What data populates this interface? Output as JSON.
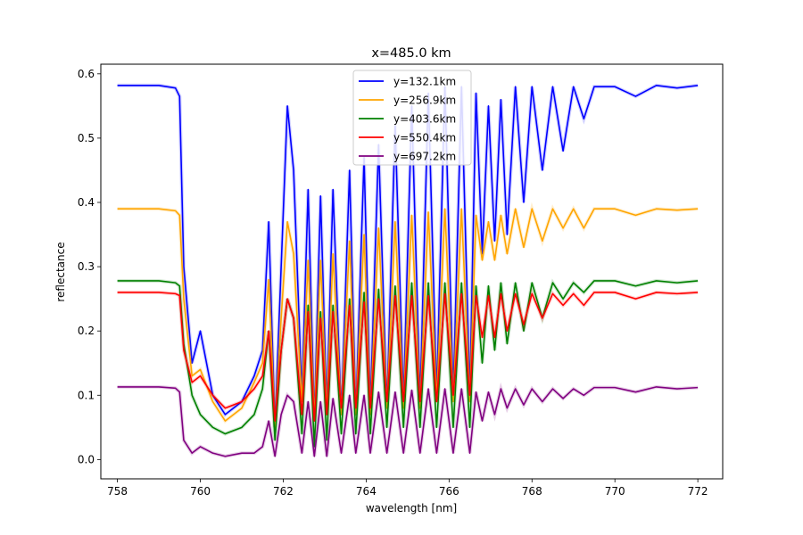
{
  "chart_data": {
    "type": "line",
    "title": "x=485.0 km",
    "xlabel": "wavelength [nm]",
    "ylabel": "reflectance",
    "xlim": [
      757.6,
      772.6
    ],
    "ylim": [
      -0.03,
      0.615
    ],
    "xticks": [
      758,
      760,
      762,
      764,
      766,
      768,
      770,
      772
    ],
    "yticks": [
      0.0,
      0.1,
      0.2,
      0.3,
      0.4,
      0.5,
      0.6
    ],
    "xtick_labels": [
      "758",
      "760",
      "762",
      "764",
      "766",
      "768",
      "770",
      "772"
    ],
    "ytick_labels": [
      "0.0",
      "0.1",
      "0.2",
      "0.3",
      "0.4",
      "0.5",
      "0.6"
    ],
    "grid": false,
    "legend_position": "top-center",
    "series": [
      {
        "name": "y=132.1km",
        "color": "#0000ff",
        "x": [
          758.0,
          759.0,
          759.4,
          759.5,
          759.6,
          759.8,
          760.0,
          760.3,
          760.6,
          761.0,
          761.3,
          761.5,
          761.65,
          761.8,
          761.95,
          762.1,
          762.25,
          762.45,
          762.6,
          762.75,
          762.9,
          763.05,
          763.2,
          763.4,
          763.6,
          763.75,
          763.95,
          764.1,
          764.3,
          764.5,
          764.7,
          764.9,
          765.1,
          765.3,
          765.5,
          765.7,
          765.9,
          766.1,
          766.3,
          766.5,
          766.65,
          766.8,
          766.95,
          767.1,
          767.25,
          767.4,
          767.6,
          767.8,
          768.0,
          768.25,
          768.5,
          768.75,
          769.0,
          769.25,
          769.5,
          770.0,
          770.5,
          771.0,
          771.5,
          772.0
        ],
        "y": [
          0.582,
          0.582,
          0.578,
          0.565,
          0.3,
          0.15,
          0.2,
          0.1,
          0.07,
          0.09,
          0.13,
          0.17,
          0.37,
          0.05,
          0.3,
          0.55,
          0.45,
          0.1,
          0.42,
          0.06,
          0.41,
          0.08,
          0.42,
          0.07,
          0.45,
          0.07,
          0.47,
          0.08,
          0.49,
          0.08,
          0.52,
          0.09,
          0.55,
          0.09,
          0.57,
          0.1,
          0.58,
          0.1,
          0.58,
          0.1,
          0.57,
          0.32,
          0.55,
          0.34,
          0.56,
          0.35,
          0.58,
          0.4,
          0.58,
          0.45,
          0.58,
          0.48,
          0.58,
          0.53,
          0.58,
          0.58,
          0.565,
          0.582,
          0.578,
          0.582
        ]
      },
      {
        "name": "y=256.9km",
        "color": "#ffa500",
        "x": [
          758.0,
          759.0,
          759.4,
          759.5,
          759.6,
          759.8,
          760.0,
          760.3,
          760.6,
          761.0,
          761.3,
          761.5,
          761.65,
          761.8,
          761.95,
          762.1,
          762.25,
          762.45,
          762.6,
          762.75,
          762.9,
          763.05,
          763.2,
          763.4,
          763.6,
          763.75,
          763.95,
          764.1,
          764.3,
          764.5,
          764.7,
          764.9,
          765.1,
          765.3,
          765.5,
          765.7,
          765.9,
          766.1,
          766.3,
          766.5,
          766.65,
          766.8,
          766.95,
          767.1,
          767.25,
          767.4,
          767.6,
          767.8,
          768.0,
          768.25,
          768.5,
          768.75,
          769.0,
          769.25,
          769.5,
          770.0,
          770.5,
          771.0,
          771.5,
          772.0
        ],
        "y": [
          0.39,
          0.39,
          0.387,
          0.38,
          0.25,
          0.13,
          0.14,
          0.09,
          0.06,
          0.08,
          0.12,
          0.15,
          0.28,
          0.05,
          0.22,
          0.37,
          0.32,
          0.09,
          0.31,
          0.06,
          0.31,
          0.07,
          0.32,
          0.07,
          0.34,
          0.07,
          0.35,
          0.07,
          0.36,
          0.08,
          0.37,
          0.08,
          0.38,
          0.08,
          0.385,
          0.09,
          0.39,
          0.09,
          0.39,
          0.09,
          0.38,
          0.31,
          0.37,
          0.31,
          0.38,
          0.32,
          0.39,
          0.33,
          0.39,
          0.34,
          0.39,
          0.36,
          0.39,
          0.36,
          0.39,
          0.39,
          0.38,
          0.39,
          0.388,
          0.39
        ]
      },
      {
        "name": "y=403.6km",
        "color": "#008000",
        "x": [
          758.0,
          759.0,
          759.4,
          759.5,
          759.6,
          759.8,
          760.0,
          760.3,
          760.6,
          761.0,
          761.3,
          761.5,
          761.65,
          761.8,
          761.95,
          762.1,
          762.25,
          762.45,
          762.6,
          762.75,
          762.9,
          763.05,
          763.2,
          763.4,
          763.6,
          763.75,
          763.95,
          764.1,
          764.3,
          764.5,
          764.7,
          764.9,
          765.1,
          765.3,
          765.5,
          765.7,
          765.9,
          766.1,
          766.3,
          766.5,
          766.65,
          766.8,
          766.95,
          767.1,
          767.25,
          767.4,
          767.6,
          767.8,
          768.0,
          768.25,
          768.5,
          768.75,
          769.0,
          769.25,
          769.5,
          770.0,
          770.5,
          771.0,
          771.5,
          772.0
        ],
        "y": [
          0.278,
          0.278,
          0.275,
          0.27,
          0.18,
          0.1,
          0.07,
          0.05,
          0.04,
          0.05,
          0.07,
          0.11,
          0.2,
          0.03,
          0.17,
          0.25,
          0.22,
          0.04,
          0.24,
          0.02,
          0.23,
          0.03,
          0.24,
          0.04,
          0.25,
          0.04,
          0.26,
          0.04,
          0.265,
          0.05,
          0.27,
          0.05,
          0.275,
          0.05,
          0.275,
          0.05,
          0.275,
          0.05,
          0.275,
          0.05,
          0.27,
          0.15,
          0.27,
          0.17,
          0.275,
          0.18,
          0.275,
          0.2,
          0.275,
          0.22,
          0.275,
          0.25,
          0.275,
          0.26,
          0.278,
          0.278,
          0.27,
          0.278,
          0.275,
          0.278
        ]
      },
      {
        "name": "y=550.4km",
        "color": "#ff0000",
        "x": [
          758.0,
          759.0,
          759.4,
          759.5,
          759.6,
          759.8,
          760.0,
          760.3,
          760.6,
          761.0,
          761.3,
          761.5,
          761.65,
          761.8,
          761.95,
          762.1,
          762.25,
          762.45,
          762.6,
          762.75,
          762.9,
          763.05,
          763.2,
          763.4,
          763.6,
          763.75,
          763.95,
          764.1,
          764.3,
          764.5,
          764.7,
          764.9,
          765.1,
          765.3,
          765.5,
          765.7,
          765.9,
          766.1,
          766.3,
          766.5,
          766.65,
          766.8,
          766.95,
          767.1,
          767.25,
          767.4,
          767.6,
          767.8,
          768.0,
          768.25,
          768.5,
          768.75,
          769.0,
          769.25,
          769.5,
          770.0,
          770.5,
          771.0,
          771.5,
          772.0
        ],
        "y": [
          0.26,
          0.26,
          0.258,
          0.255,
          0.17,
          0.12,
          0.13,
          0.1,
          0.08,
          0.09,
          0.11,
          0.13,
          0.2,
          0.06,
          0.17,
          0.25,
          0.22,
          0.07,
          0.23,
          0.06,
          0.22,
          0.07,
          0.23,
          0.08,
          0.24,
          0.08,
          0.245,
          0.08,
          0.25,
          0.09,
          0.255,
          0.09,
          0.255,
          0.09,
          0.255,
          0.09,
          0.258,
          0.1,
          0.258,
          0.1,
          0.255,
          0.19,
          0.255,
          0.19,
          0.258,
          0.2,
          0.258,
          0.21,
          0.258,
          0.22,
          0.258,
          0.24,
          0.258,
          0.24,
          0.26,
          0.26,
          0.25,
          0.26,
          0.258,
          0.26
        ]
      },
      {
        "name": "y=697.2km",
        "color": "#800080",
        "x": [
          758.0,
          759.0,
          759.4,
          759.5,
          759.6,
          759.8,
          760.0,
          760.3,
          760.6,
          761.0,
          761.3,
          761.5,
          761.65,
          761.8,
          761.95,
          762.1,
          762.25,
          762.45,
          762.6,
          762.75,
          762.9,
          763.05,
          763.2,
          763.4,
          763.6,
          763.75,
          763.95,
          764.1,
          764.3,
          764.5,
          764.7,
          764.9,
          765.1,
          765.3,
          765.5,
          765.7,
          765.9,
          766.1,
          766.3,
          766.5,
          766.65,
          766.8,
          766.95,
          767.1,
          767.25,
          767.4,
          767.6,
          767.8,
          768.0,
          768.25,
          768.5,
          768.75,
          769.0,
          769.25,
          769.5,
          770.0,
          770.5,
          771.0,
          771.5,
          772.0
        ],
        "y": [
          0.113,
          0.113,
          0.111,
          0.105,
          0.03,
          0.01,
          0.02,
          0.01,
          0.005,
          0.01,
          0.01,
          0.02,
          0.06,
          0.005,
          0.07,
          0.1,
          0.09,
          0.01,
          0.09,
          0.005,
          0.09,
          0.005,
          0.095,
          0.01,
          0.1,
          0.01,
          0.1,
          0.01,
          0.105,
          0.01,
          0.105,
          0.01,
          0.108,
          0.01,
          0.11,
          0.01,
          0.11,
          0.01,
          0.11,
          0.01,
          0.105,
          0.06,
          0.105,
          0.07,
          0.11,
          0.08,
          0.11,
          0.085,
          0.11,
          0.09,
          0.11,
          0.095,
          0.11,
          0.1,
          0.112,
          0.112,
          0.105,
          0.113,
          0.11,
          0.112
        ]
      }
    ]
  }
}
